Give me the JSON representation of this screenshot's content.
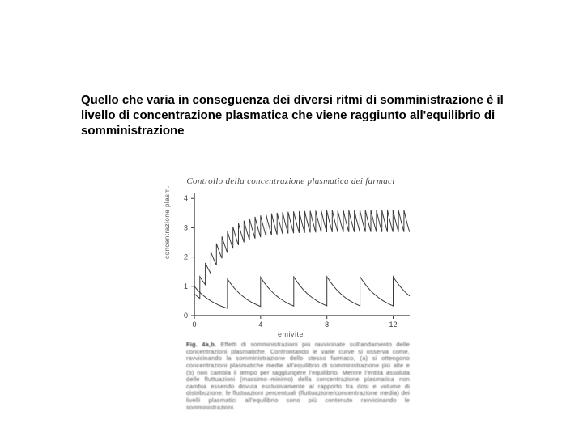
{
  "caption_text": "Quello che varia in conseguenza dei diversi ritmi di somministrazione è il livello di concentrazione plasmatica che viene raggiunto all'equilibrio di somministrazione",
  "figure": {
    "title": "Controllo della concentrazione plasmatica dei farmaci",
    "ylabel": "concentrazione plasm.",
    "xlabel": "emivite",
    "chart": {
      "type": "line",
      "background_color": "#ffffff",
      "axis_color": "#3a3a3a",
      "line_color": "#3a3a3a",
      "line_width": 1.0,
      "xlim": [
        0,
        13
      ],
      "ylim": [
        0,
        4.2
      ],
      "xticks": [
        0,
        4,
        8,
        12
      ],
      "xtick_labels": [
        "0",
        "4",
        "8",
        "12"
      ],
      "yticks": [
        0,
        1,
        2,
        3,
        4
      ],
      "ytick_labels": [
        "0",
        "1",
        "2",
        "3",
        "4"
      ],
      "series_a": {
        "dose_interval_halflives": 0.333,
        "steady_state_level": 3.6,
        "n_doses": 39
      },
      "series_b": {
        "dose_interval_halflives": 2.0,
        "steady_state_level": 1.33,
        "n_doses": 7
      }
    },
    "caption_lead": "Fig. 4a,b.",
    "caption_body": "Effetti di somministrazioni più ravvicinate sull'andamento delle concentrazioni plasmatiche. Confrontando le varie curve si osserva come, ravvicinando la somministrazione dello stesso farmaco, (a) si ottengono concentrazioni plasmatiche medie all'equilibrio di somministrazione più alte e (b) non cambia il tempo per raggiungere l'equilibrio. Mentre l'entità assoluta delle fluttuazioni (massimo–minimo) della concentrazione plasmatica non cambia essendo dovuta esclusivamente al rapporto fra dosi e volume di distribuzione, le fluttuazioni percentuali (fluttuazione/concentrazione media) dei livelli plasmatici all'equilibrio sono più contenute ravvicinando le somministrazioni."
  }
}
